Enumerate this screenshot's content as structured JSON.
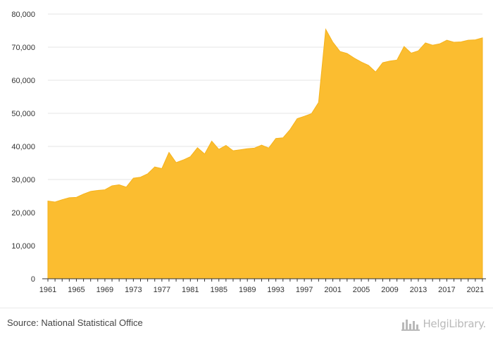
{
  "chart_data": {
    "type": "area",
    "title": "",
    "xlabel": "",
    "ylabel": "",
    "ylim": [
      0,
      80000
    ],
    "yticks": [
      0,
      10000,
      20000,
      30000,
      40000,
      50000,
      60000,
      70000,
      80000
    ],
    "ytick_labels": [
      "0",
      "10,000",
      "20,000",
      "30,000",
      "40,000",
      "50,000",
      "60,000",
      "70,000",
      "80,000"
    ],
    "xticks": [
      1961,
      1965,
      1969,
      1973,
      1977,
      1981,
      1985,
      1989,
      1993,
      1997,
      2001,
      2005,
      2009,
      2013,
      2017,
      2021
    ],
    "xtick_labels": [
      "1961",
      "1965",
      "1969",
      "1973",
      "1977",
      "1981",
      "1985",
      "1989",
      "1993",
      "1997",
      "2001",
      "2005",
      "2009",
      "2013",
      "2017",
      "2021"
    ],
    "grid": true,
    "color": "#fbbd30",
    "x": [
      1961,
      1962,
      1963,
      1964,
      1965,
      1966,
      1967,
      1968,
      1969,
      1970,
      1971,
      1972,
      1973,
      1974,
      1975,
      1976,
      1977,
      1978,
      1979,
      1980,
      1981,
      1982,
      1983,
      1984,
      1985,
      1986,
      1987,
      1988,
      1989,
      1990,
      1991,
      1992,
      1993,
      1994,
      1995,
      1996,
      1997,
      1998,
      1999,
      2000,
      2001,
      2002,
      2003,
      2004,
      2005,
      2006,
      2007,
      2008,
      2009,
      2010,
      2011,
      2012,
      2013,
      2014,
      2015,
      2016,
      2017,
      2018,
      2019,
      2020,
      2021,
      2022
    ],
    "values": [
      23500,
      23200,
      23900,
      24500,
      24600,
      25600,
      26400,
      26700,
      26900,
      28100,
      28400,
      27700,
      30400,
      30700,
      31700,
      33800,
      33300,
      38200,
      35100,
      35900,
      36900,
      39600,
      37700,
      41600,
      39100,
      40300,
      38700,
      39000,
      39300,
      39500,
      40400,
      39500,
      42400,
      42600,
      45100,
      48400,
      49100,
      49900,
      53300,
      75400,
      71500,
      68700,
      68100,
      66700,
      65500,
      64500,
      62500,
      65300,
      65800,
      66100,
      70200,
      68200,
      68900,
      71300,
      70600,
      71000,
      72100,
      71500,
      71600,
      72100,
      72200,
      72800
    ]
  },
  "footer": {
    "source": "Source: National Statistical Office",
    "brand": "HelgiLibrary."
  },
  "icons": {
    "brand": "helgi-library-logo-icon"
  }
}
